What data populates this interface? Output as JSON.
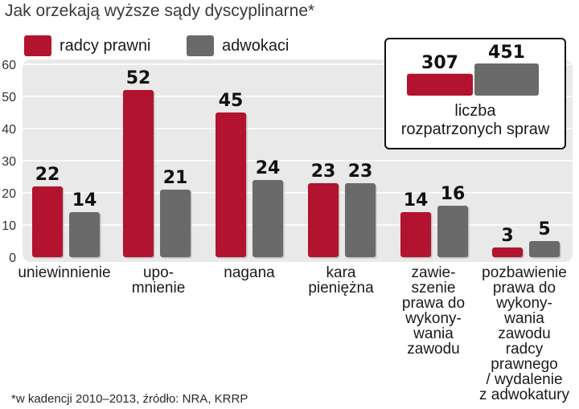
{
  "title": "Jak orzekają wyższe sądy dyscyplinarne*",
  "legend": [
    {
      "label": "radcy prawni",
      "color": "#b2132e"
    },
    {
      "label": "adwokaci",
      "color": "#6a6a6a"
    }
  ],
  "footnote": "*w kadencji 2010–2013, źródło: NRA, KRRP",
  "inset": {
    "caption": "liczba\nrozpatrzonych spraw",
    "values": [
      307,
      451
    ]
  },
  "chart_data": {
    "type": "bar",
    "title": "Jak orzekają wyższe sądy dyscyplinarne*",
    "categories": [
      "uniewinnienie",
      "upo-\nmnienie",
      "nagana",
      "kara\npieniężna",
      "zawie-\nszenie\nprawa do\nwykony-\nwania\nzawodu",
      "pozbawienie\nprawa do\nwykony-\nwania\nzawodu\nradcy\nprawnego\n/ wydalenie\nz adwokatury"
    ],
    "series": [
      {
        "name": "radcy prawni",
        "values": [
          22,
          52,
          45,
          23,
          14,
          3
        ]
      },
      {
        "name": "adwokaci",
        "values": [
          14,
          21,
          24,
          23,
          16,
          5
        ]
      }
    ],
    "y_ticks": [
      0,
      10,
      20,
      30,
      40,
      50,
      60
    ],
    "ylim": [
      0,
      60
    ],
    "grid": true,
    "legend_position": "top-left",
    "colors": {
      "radcy_prawni": "#b2132e",
      "adwokaci": "#6a6a6a",
      "panel": "#e9e9e9"
    }
  }
}
